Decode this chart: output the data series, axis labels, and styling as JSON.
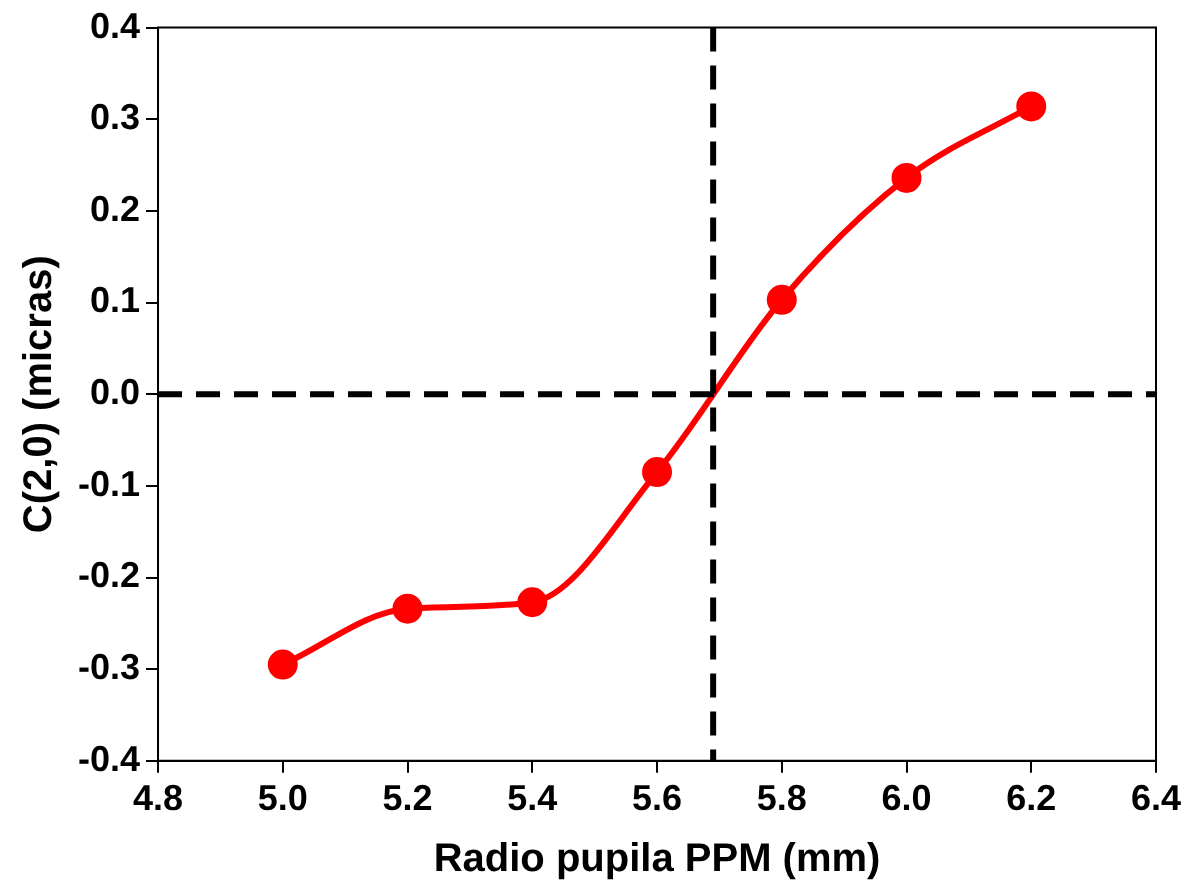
{
  "chart_data": {
    "type": "line",
    "xlabel": "Radio pupila PPM (mm)",
    "ylabel": "C(2,0) (micras)",
    "x": [
      5.0,
      5.2,
      5.4,
      5.6,
      5.8,
      6.0,
      6.2
    ],
    "series": [
      {
        "color": "#ff0000",
        "values": [
          -0.295,
          -0.234,
          -0.227,
          -0.085,
          0.103,
          0.236,
          0.314
        ]
      }
    ],
    "xlim": [
      4.8,
      6.4
    ],
    "xticks": [
      {
        "value": 4.8,
        "label": "4.8"
      },
      {
        "value": 5.0,
        "label": "5.0"
      },
      {
        "value": 5.2,
        "label": "5.2"
      },
      {
        "value": 5.4,
        "label": "5.4"
      },
      {
        "value": 5.6,
        "label": "5.6"
      },
      {
        "value": 5.8,
        "label": "5.8"
      },
      {
        "value": 6.0,
        "label": "6.0"
      },
      {
        "value": 6.2,
        "label": "6.2"
      },
      {
        "value": 6.4,
        "label": "6.4"
      }
    ],
    "ylim": [
      -0.4,
      0.4
    ],
    "yticks": [
      {
        "value": -0.4,
        "label": "-0.4"
      },
      {
        "value": -0.3,
        "label": "-0.3"
      },
      {
        "value": -0.2,
        "label": "-0.2"
      },
      {
        "value": -0.1,
        "label": "-0.1"
      },
      {
        "value": 0,
        "label": "0.0"
      },
      {
        "value": 0.1,
        "label": "0.1"
      },
      {
        "value": 0.2,
        "label": "0.2"
      },
      {
        "value": 0.3,
        "label": "0.3"
      },
      {
        "value": 0.4,
        "label": "0.4"
      }
    ],
    "ref_lines": [
      {
        "axis": "y",
        "value": 0,
        "color": "#000000",
        "line_style": "dashed"
      },
      {
        "axis": "x",
        "value": 5.69,
        "color": "#000000",
        "line_style": "dashed"
      }
    ],
    "grid": false,
    "legend": false,
    "marker": "circle",
    "line_style": "solid"
  }
}
